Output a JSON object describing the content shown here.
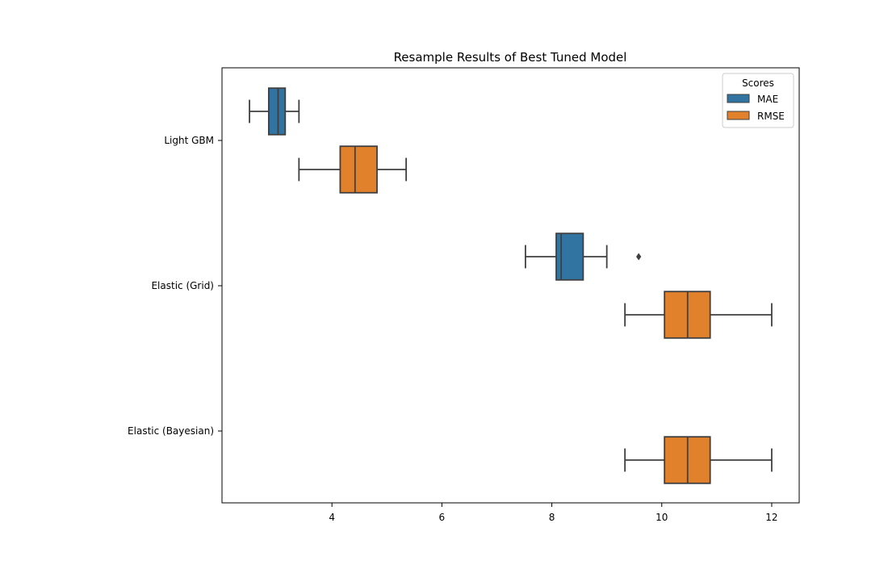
{
  "chart_data": {
    "type": "boxplot",
    "orientation": "horizontal",
    "title": "Resample Results of Best Tuned Model",
    "xlabel": "",
    "ylabel": "",
    "xlim": [
      2.0,
      12.5
    ],
    "xticks": [
      4,
      6,
      8,
      10,
      12
    ],
    "categories": [
      "Light GBM",
      "Elastic (Grid)",
      "Elastic (Bayesian)"
    ],
    "legend": {
      "title": "Scores",
      "position": "top-right"
    },
    "series": [
      {
        "name": "MAE",
        "color": "#3274a1",
        "boxes": [
          {
            "category": "Light GBM",
            "whisker_low": 2.5,
            "q1": 2.85,
            "median": 3.02,
            "q3": 3.15,
            "whisker_high": 3.4,
            "outliers": []
          },
          {
            "category": "Elastic (Grid)",
            "whisker_low": 7.52,
            "q1": 8.08,
            "median": 8.17,
            "q3": 8.57,
            "whisker_high": 9.0,
            "outliers": [
              9.58
            ]
          }
        ]
      },
      {
        "name": "RMSE",
        "color": "#e1812c",
        "boxes": [
          {
            "category": "Light GBM",
            "whisker_low": 3.4,
            "q1": 4.15,
            "median": 4.42,
            "q3": 4.82,
            "whisker_high": 5.35,
            "outliers": []
          },
          {
            "category": "Elastic (Grid)",
            "whisker_low": 9.33,
            "q1": 10.05,
            "median": 10.47,
            "q3": 10.88,
            "whisker_high": 12.0,
            "outliers": []
          },
          {
            "category": "Elastic (Bayesian)",
            "whisker_low": 9.33,
            "q1": 10.05,
            "median": 10.47,
            "q3": 10.88,
            "whisker_high": 12.0,
            "outliers": []
          }
        ]
      }
    ],
    "grid": false,
    "line_color": "#3f3f3f"
  }
}
